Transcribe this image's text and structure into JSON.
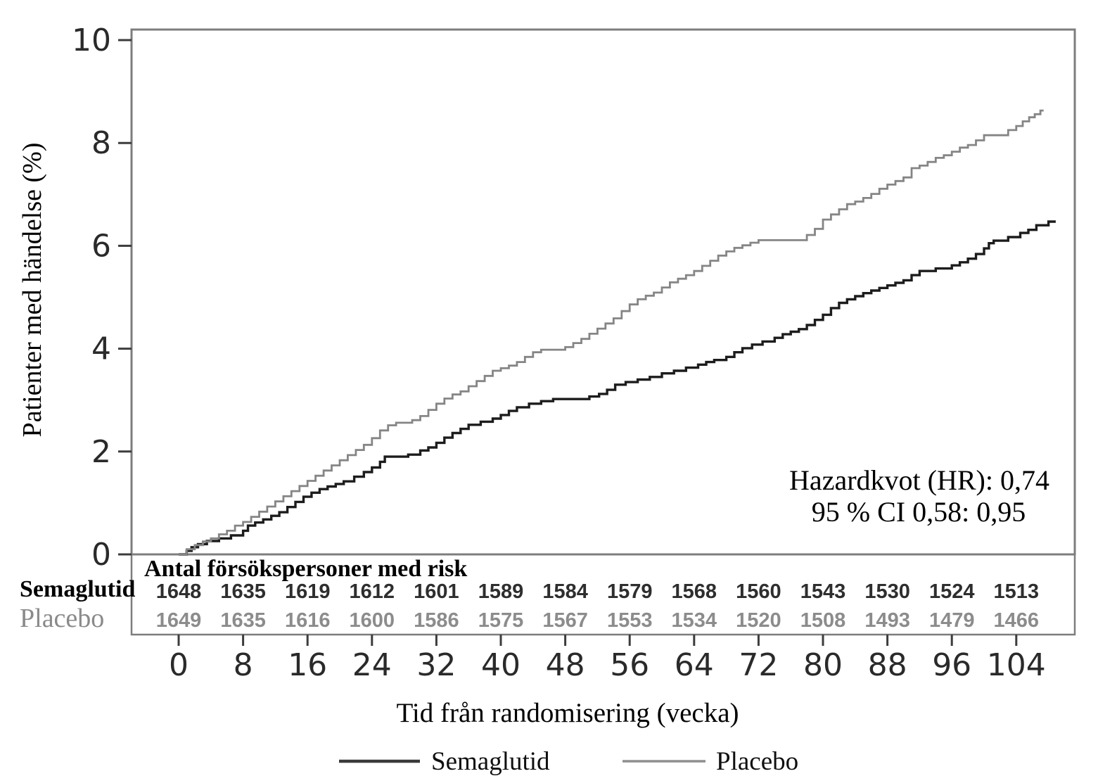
{
  "chart_data": {
    "type": "line",
    "subtype": "kaplan-meier-step",
    "xlabel": "Tid från randomisering (vecka)",
    "ylabel": "Patienter med händelse (%)",
    "xlim": [
      0,
      111.5
    ],
    "ylim": [
      0,
      10.2
    ],
    "x_ticks": [
      0,
      8,
      16,
      24,
      32,
      40,
      48,
      56,
      64,
      72,
      80,
      88,
      96,
      104
    ],
    "y_ticks": [
      0,
      2,
      4,
      6,
      8,
      10
    ],
    "grid": false,
    "annotation": [
      "Hazardkvot (HR): 0,74",
      "95 % CI 0,58: 0,95"
    ],
    "series": [
      {
        "name": "Semaglutid",
        "color": "#1c1c1c",
        "stroke_width": 3.4,
        "end_week": 108.9,
        "points": [
          [
            0,
            0
          ],
          [
            1,
            0.07
          ],
          [
            1.6,
            0.14
          ],
          [
            2.4,
            0.2
          ],
          [
            3.5,
            0.26
          ],
          [
            5,
            0.31
          ],
          [
            6.5,
            0.37
          ],
          [
            8,
            0.46
          ],
          [
            8.6,
            0.56
          ],
          [
            9.5,
            0.62
          ],
          [
            10.5,
            0.68
          ],
          [
            11.5,
            0.75
          ],
          [
            12.5,
            0.82
          ],
          [
            13.5,
            0.92
          ],
          [
            14.5,
            1.02
          ],
          [
            15.5,
            1.12
          ],
          [
            16.5,
            1.2
          ],
          [
            17.5,
            1.27
          ],
          [
            18.5,
            1.32
          ],
          [
            19.5,
            1.37
          ],
          [
            20.5,
            1.42
          ],
          [
            21.8,
            1.51
          ],
          [
            23,
            1.6
          ],
          [
            24,
            1.69
          ],
          [
            25,
            1.8
          ],
          [
            25.6,
            1.9
          ],
          [
            28.5,
            1.94
          ],
          [
            30,
            2.02
          ],
          [
            31,
            2.08
          ],
          [
            32,
            2.17
          ],
          [
            33,
            2.27
          ],
          [
            34,
            2.36
          ],
          [
            35,
            2.44
          ],
          [
            36,
            2.52
          ],
          [
            37.5,
            2.58
          ],
          [
            39,
            2.64
          ],
          [
            40,
            2.71
          ],
          [
            41,
            2.79
          ],
          [
            42,
            2.86
          ],
          [
            43.5,
            2.93
          ],
          [
            45,
            2.98
          ],
          [
            46.5,
            3.02
          ],
          [
            51,
            3.07
          ],
          [
            52.2,
            3.12
          ],
          [
            53.2,
            3.2
          ],
          [
            54.2,
            3.3
          ],
          [
            55.5,
            3.35
          ],
          [
            57,
            3.4
          ],
          [
            58.5,
            3.45
          ],
          [
            60,
            3.52
          ],
          [
            61.5,
            3.57
          ],
          [
            63,
            3.63
          ],
          [
            64.5,
            3.69
          ],
          [
            65.5,
            3.74
          ],
          [
            66.5,
            3.78
          ],
          [
            68,
            3.84
          ],
          [
            69,
            3.93
          ],
          [
            70,
            4.01
          ],
          [
            71.2,
            4.08
          ],
          [
            72.5,
            4.14
          ],
          [
            74,
            4.21
          ],
          [
            75,
            4.28
          ],
          [
            76,
            4.33
          ],
          [
            77,
            4.38
          ],
          [
            78,
            4.46
          ],
          [
            79,
            4.56
          ],
          [
            80,
            4.66
          ],
          [
            81,
            4.79
          ],
          [
            82,
            4.89
          ],
          [
            83,
            4.96
          ],
          [
            84,
            5.02
          ],
          [
            85,
            5.08
          ],
          [
            86,
            5.13
          ],
          [
            87,
            5.18
          ],
          [
            88,
            5.23
          ],
          [
            89,
            5.28
          ],
          [
            90,
            5.33
          ],
          [
            91,
            5.43
          ],
          [
            92,
            5.51
          ],
          [
            94,
            5.56
          ],
          [
            96,
            5.62
          ],
          [
            97,
            5.68
          ],
          [
            98,
            5.75
          ],
          [
            99,
            5.84
          ],
          [
            100,
            5.95
          ],
          [
            100.6,
            6.05
          ],
          [
            101.2,
            6.1
          ],
          [
            103,
            6.17
          ],
          [
            104.5,
            6.25
          ],
          [
            105.5,
            6.31
          ],
          [
            106.5,
            6.4
          ],
          [
            108,
            6.47
          ]
        ]
      },
      {
        "name": "Placebo",
        "color": "#858585",
        "stroke_width": 2.8,
        "end_week": 107.4,
        "points": [
          [
            0,
            0
          ],
          [
            1,
            0.1
          ],
          [
            2,
            0.18
          ],
          [
            3,
            0.25
          ],
          [
            4,
            0.31
          ],
          [
            5,
            0.39
          ],
          [
            6,
            0.46
          ],
          [
            7,
            0.56
          ],
          [
            8,
            0.63
          ],
          [
            9,
            0.73
          ],
          [
            10,
            0.83
          ],
          [
            11,
            0.93
          ],
          [
            12,
            1.03
          ],
          [
            13,
            1.13
          ],
          [
            14,
            1.23
          ],
          [
            15,
            1.33
          ],
          [
            16,
            1.43
          ],
          [
            17,
            1.53
          ],
          [
            18,
            1.63
          ],
          [
            19,
            1.73
          ],
          [
            20,
            1.83
          ],
          [
            21,
            1.93
          ],
          [
            22,
            2.03
          ],
          [
            23,
            2.13
          ],
          [
            24,
            2.26
          ],
          [
            25,
            2.41
          ],
          [
            26,
            2.51
          ],
          [
            27,
            2.56
          ],
          [
            29,
            2.61
          ],
          [
            30,
            2.69
          ],
          [
            31,
            2.81
          ],
          [
            32,
            2.93
          ],
          [
            33,
            3.03
          ],
          [
            34,
            3.11
          ],
          [
            35,
            3.17
          ],
          [
            36,
            3.27
          ],
          [
            37,
            3.37
          ],
          [
            38,
            3.47
          ],
          [
            39,
            3.57
          ],
          [
            40,
            3.62
          ],
          [
            41,
            3.67
          ],
          [
            42,
            3.74
          ],
          [
            43,
            3.84
          ],
          [
            44,
            3.93
          ],
          [
            45,
            3.98
          ],
          [
            48,
            4.03
          ],
          [
            49,
            4.11
          ],
          [
            50,
            4.19
          ],
          [
            51,
            4.29
          ],
          [
            52,
            4.39
          ],
          [
            53,
            4.49
          ],
          [
            54,
            4.59
          ],
          [
            55,
            4.73
          ],
          [
            56,
            4.86
          ],
          [
            57,
            4.96
          ],
          [
            58,
            5.03
          ],
          [
            59,
            5.09
          ],
          [
            60,
            5.19
          ],
          [
            61,
            5.29
          ],
          [
            62,
            5.36
          ],
          [
            63,
            5.43
          ],
          [
            64,
            5.51
          ],
          [
            65,
            5.61
          ],
          [
            66,
            5.71
          ],
          [
            67,
            5.81
          ],
          [
            68,
            5.89
          ],
          [
            69,
            5.96
          ],
          [
            70,
            6.01
          ],
          [
            71,
            6.06
          ],
          [
            72,
            6.11
          ],
          [
            78,
            6.21
          ],
          [
            79,
            6.33
          ],
          [
            80,
            6.51
          ],
          [
            81,
            6.61
          ],
          [
            82,
            6.71
          ],
          [
            83,
            6.81
          ],
          [
            84,
            6.86
          ],
          [
            85,
            6.93
          ],
          [
            86,
            7.01
          ],
          [
            87,
            7.11
          ],
          [
            88,
            7.19
          ],
          [
            89,
            7.26
          ],
          [
            90,
            7.33
          ],
          [
            91,
            7.51
          ],
          [
            92,
            7.56
          ],
          [
            93,
            7.63
          ],
          [
            94,
            7.71
          ],
          [
            95,
            7.76
          ],
          [
            96,
            7.83
          ],
          [
            97,
            7.91
          ],
          [
            98,
            7.96
          ],
          [
            99,
            8.05
          ],
          [
            100,
            8.15
          ],
          [
            103,
            8.25
          ],
          [
            104,
            8.33
          ],
          [
            104.8,
            8.42
          ],
          [
            105.6,
            8.5
          ],
          [
            106.3,
            8.56
          ],
          [
            107,
            8.63
          ]
        ]
      }
    ],
    "risk_table": {
      "title": "Antal försökspersoner med risk",
      "weeks": [
        0,
        8,
        16,
        24,
        32,
        40,
        48,
        56,
        64,
        72,
        80,
        88,
        96,
        104
      ],
      "rows": [
        {
          "label": "Semaglutid",
          "label_color": "#000000",
          "value_color": "#2e2e2e",
          "values": [
            1648,
            1635,
            1619,
            1612,
            1601,
            1589,
            1584,
            1579,
            1568,
            1560,
            1543,
            1530,
            1524,
            1513
          ]
        },
        {
          "label": "Placebo",
          "label_color": "#8a8a8a",
          "value_color": "#8c8c8c",
          "values": [
            1649,
            1635,
            1616,
            1600,
            1586,
            1575,
            1567,
            1553,
            1534,
            1520,
            1508,
            1493,
            1479,
            1466
          ]
        }
      ]
    },
    "legend": [
      {
        "label": "Semaglutid",
        "color": "#3a3a3a"
      },
      {
        "label": "Placebo",
        "color": "#8f8f8f"
      }
    ],
    "frame_color": "#7d7d7d"
  }
}
